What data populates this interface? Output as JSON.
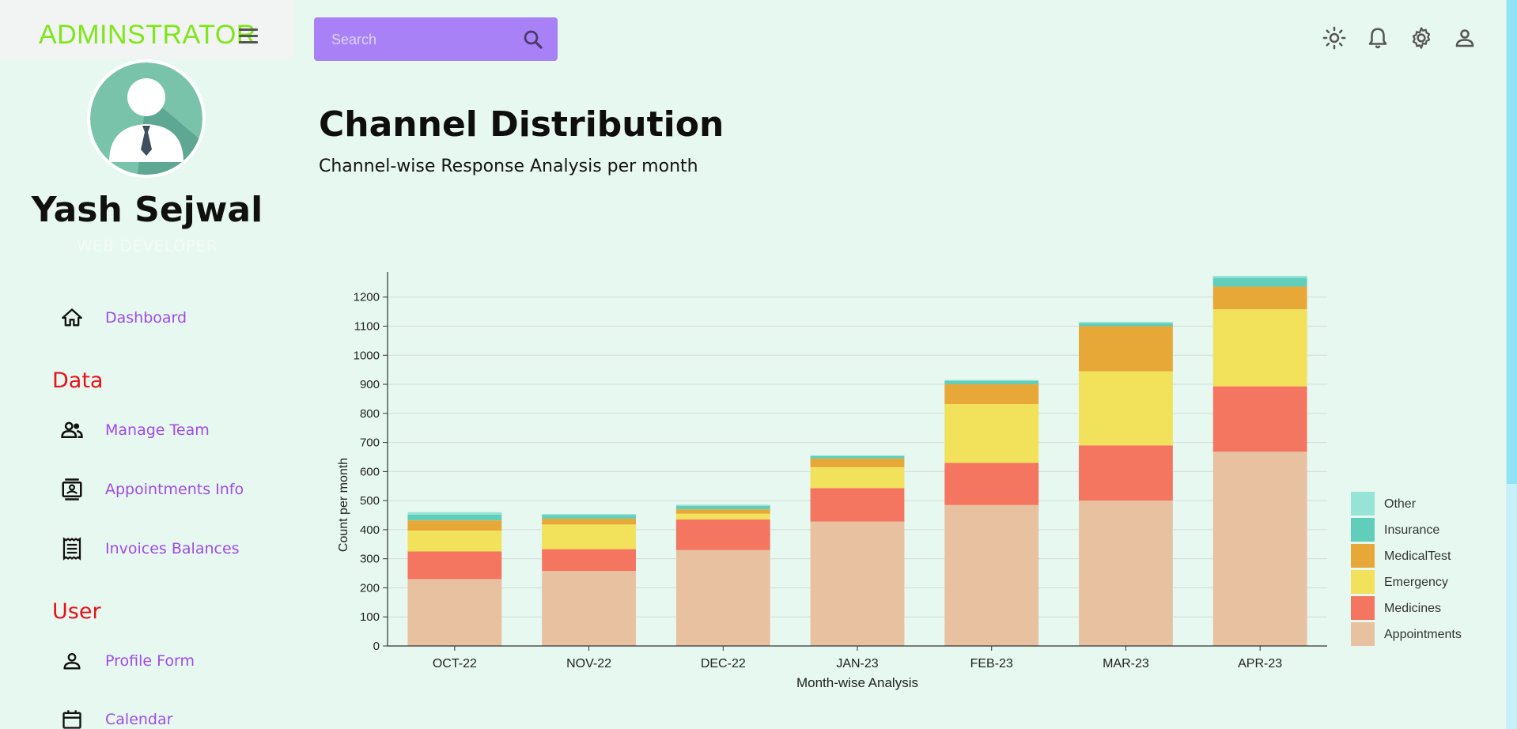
{
  "app": {
    "brand": "ADMINSTRATOR"
  },
  "profile": {
    "name": "Yash Sejwal",
    "role": "WEB DEVELOPER"
  },
  "nav": {
    "dashboard": "Dashboard",
    "section_data": "Data",
    "manage_team": "Manage Team",
    "appointments_info": "Appointments Info",
    "invoices_balances": "Invoices Balances",
    "section_user": "User",
    "profile_form": "Profile Form",
    "calendar": "Calendar"
  },
  "search": {
    "placeholder": "Search"
  },
  "header": {
    "title": "Channel Distribution",
    "subtitle": "Channel-wise Response Analysis per month"
  },
  "colors": {
    "brand": "#7ee619",
    "nav_link": "#a04be6",
    "section": "#e6121a",
    "search_bg": "#a881f7",
    "background": "#e6f8f0"
  },
  "chart_data": {
    "type": "bar",
    "stacked": true,
    "categories": [
      "OCT-22",
      "NOV-22",
      "DEC-22",
      "JAN-23",
      "FEB-23",
      "MAR-23",
      "APR-23"
    ],
    "series": [
      {
        "name": "Appointments",
        "color": "#e8c1a0",
        "values": [
          230,
          258,
          330,
          428,
          485,
          500,
          668
        ]
      },
      {
        "name": "Medicines",
        "color": "#f47560",
        "values": [
          95,
          75,
          105,
          115,
          145,
          190,
          225
        ]
      },
      {
        "name": "Emergency",
        "color": "#f1e15b",
        "values": [
          72,
          85,
          20,
          72,
          202,
          255,
          265
        ]
      },
      {
        "name": "MedicalTest",
        "color": "#e8a838",
        "values": [
          35,
          20,
          15,
          30,
          68,
          155,
          78
        ]
      },
      {
        "name": "Insurance",
        "color": "#61cdbb",
        "values": [
          20,
          12,
          12,
          8,
          12,
          10,
          30
        ]
      },
      {
        "name": "Other",
        "color": "#97e3d5",
        "values": [
          8,
          4,
          4,
          3,
          3,
          5,
          7
        ]
      }
    ],
    "xlabel": "Month-wise Analysis",
    "ylabel": "Count per month",
    "ylim": [
      0,
      1270
    ],
    "yticks": [
      0,
      100,
      200,
      300,
      400,
      500,
      600,
      700,
      800,
      900,
      1000,
      1100,
      1200
    ],
    "grid": true,
    "legend_position": "right-bottom"
  }
}
